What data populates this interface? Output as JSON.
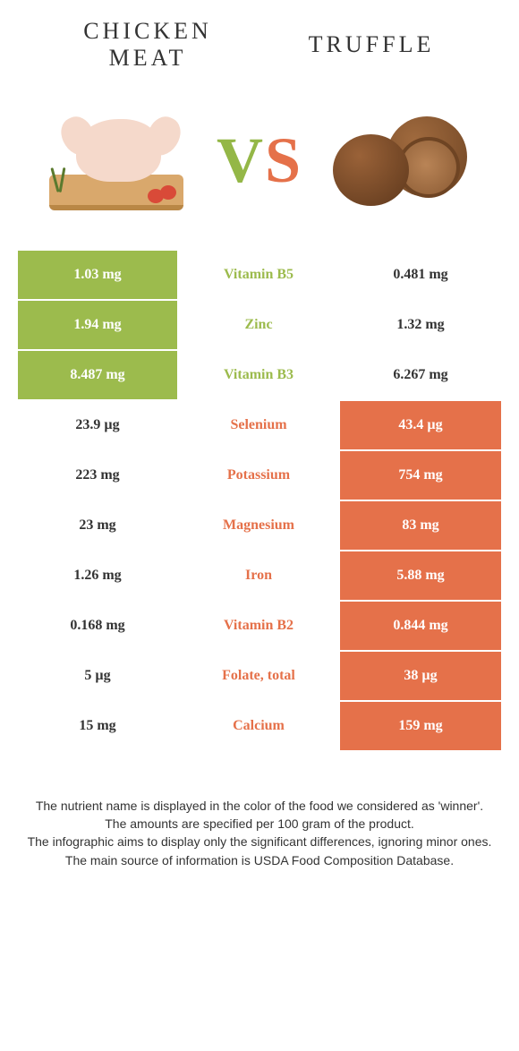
{
  "colors": {
    "green": "#9cbb4d",
    "orange": "#e5714a",
    "text": "#333333",
    "background": "#ffffff"
  },
  "header": {
    "left_title": "CHICKEN MEAT",
    "right_title": "Truffle",
    "vs_v": "V",
    "vs_s": "S"
  },
  "comparison": {
    "type": "table",
    "left_food": "Chicken meat",
    "right_food": "Truffle",
    "rows": [
      {
        "nutrient": "Vitamin B5",
        "left": "1.03 mg",
        "right": "0.481 mg",
        "winner": "left"
      },
      {
        "nutrient": "Zinc",
        "left": "1.94 mg",
        "right": "1.32 mg",
        "winner": "left"
      },
      {
        "nutrient": "Vitamin B3",
        "left": "8.487 mg",
        "right": "6.267 mg",
        "winner": "left"
      },
      {
        "nutrient": "Selenium",
        "left": "23.9 µg",
        "right": "43.4 µg",
        "winner": "right"
      },
      {
        "nutrient": "Potassium",
        "left": "223 mg",
        "right": "754 mg",
        "winner": "right"
      },
      {
        "nutrient": "Magnesium",
        "left": "23 mg",
        "right": "83 mg",
        "winner": "right"
      },
      {
        "nutrient": "Iron",
        "left": "1.26 mg",
        "right": "5.88 mg",
        "winner": "right"
      },
      {
        "nutrient": "Vitamin B2",
        "left": "0.168 mg",
        "right": "0.844 mg",
        "winner": "right"
      },
      {
        "nutrient": "Folate, total",
        "left": "5 µg",
        "right": "38 µg",
        "winner": "right"
      },
      {
        "nutrient": "Calcium",
        "left": "15 mg",
        "right": "159 mg",
        "winner": "right"
      }
    ]
  },
  "footer": {
    "line1": "The nutrient name is displayed in the color of the food we considered as 'winner'.",
    "line2": "The amounts are specified per 100 gram of the product.",
    "line3": "The infographic aims to display only the significant differences, ignoring minor ones.",
    "line4": "The main source of information is USDA Food Composition Database."
  }
}
